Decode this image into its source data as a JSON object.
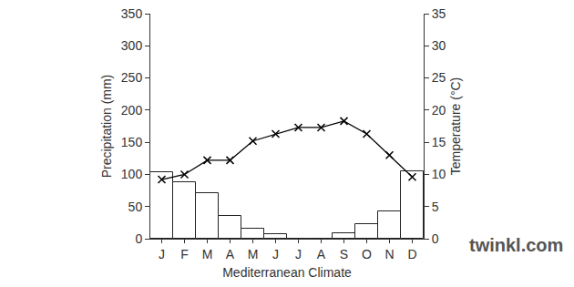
{
  "chart_data": {
    "type": "bar",
    "title": "Mediterranean Climate",
    "categories": [
      "J",
      "F",
      "M",
      "A",
      "M",
      "J",
      "J",
      "A",
      "S",
      "O",
      "N",
      "D"
    ],
    "series": [
      {
        "name": "Precipitation (mm)",
        "type": "bar",
        "color": "#ffffff",
        "values": [
          103,
          88,
          71,
          35,
          15,
          7,
          0,
          0,
          9,
          23,
          43,
          105
        ]
      },
      {
        "name": "Temperature (°C)",
        "type": "line",
        "axis": "y2",
        "color": "#000000",
        "marker": "x",
        "values": [
          9.2,
          10,
          12.2,
          12.2,
          15.2,
          16.3,
          17.3,
          17.3,
          18.3,
          16.3,
          13,
          9.6
        ]
      }
    ],
    "y_label": "Precipitation (mm)",
    "y2_label": "Temperature (°C)",
    "ylim": [
      0,
      350
    ],
    "yticks": [
      0,
      50,
      100,
      150,
      200,
      250,
      300,
      350
    ],
    "y2lim": [
      0,
      35
    ],
    "y2ticks": [
      0,
      5,
      10,
      15,
      20,
      25,
      30,
      35
    ],
    "grid": false,
    "annotations": [
      "twinkl.com"
    ]
  }
}
